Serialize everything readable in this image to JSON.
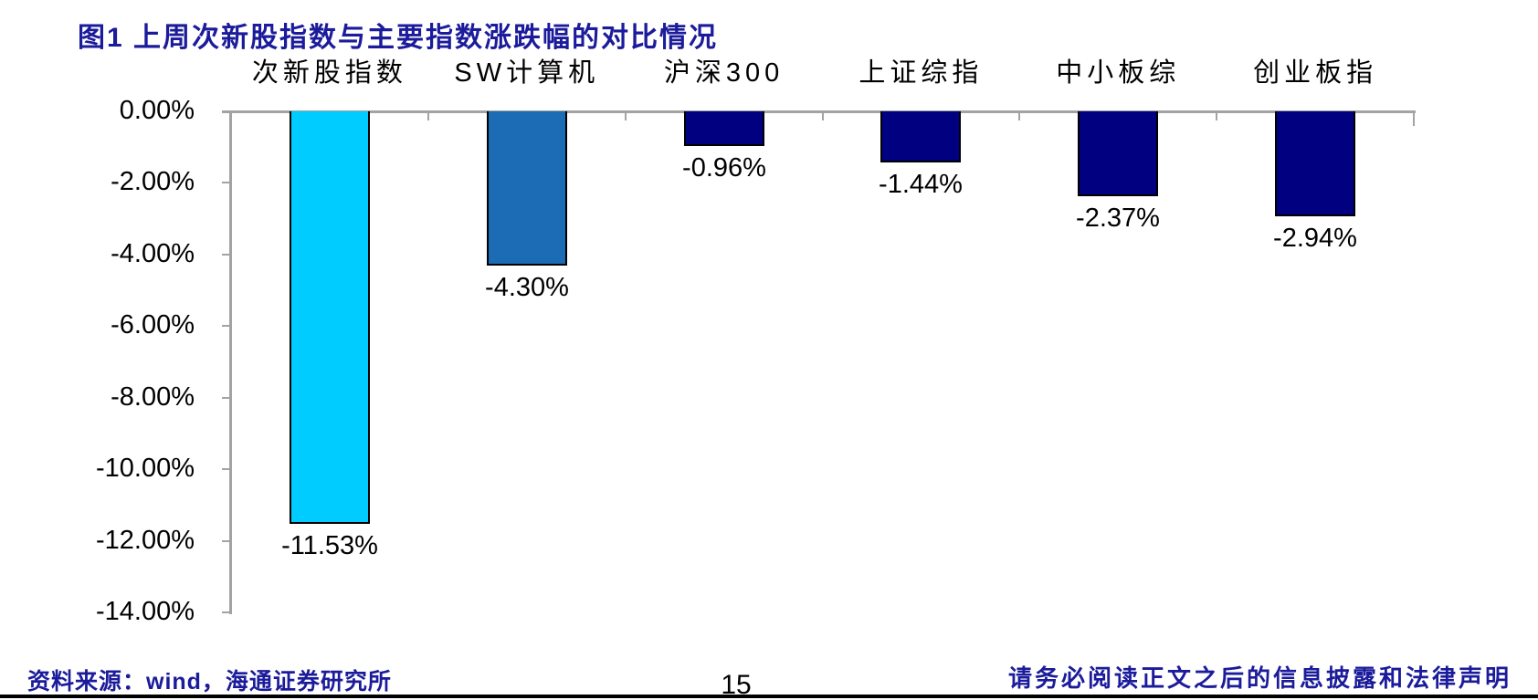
{
  "page": {
    "footer": {
      "source": "资料来源：wind，海通证券研究所",
      "page_number": "15",
      "disclaimer": "请务必阅读正文之后的信息披露和法律声明"
    },
    "colors": {
      "title_blue": "#1b1b9b",
      "axis_gray": "#a3a3a3",
      "bar_border": "#000000",
      "cyan_bar": "#00ccff",
      "medium_blue_bar": "#1b6cb5",
      "navy_bar": "#000080"
    }
  },
  "chart_data": {
    "type": "bar",
    "title": "图1 上周次新股指数与主要指数涨跌幅的对比情况",
    "categories": [
      "次新股指数",
      "SW计算机",
      "沪深300",
      "上证综指",
      "中小板综",
      "创业板指"
    ],
    "values": [
      -11.53,
      -4.3,
      -0.96,
      -1.44,
      -2.37,
      -2.94
    ],
    "value_labels": [
      "-11.53%",
      "-4.30%",
      "-0.96%",
      "-1.44%",
      "-2.37%",
      "-2.94%"
    ],
    "bar_colors": [
      "#00ccff",
      "#1b6cb5",
      "#000080",
      "#000080",
      "#000080",
      "#000080"
    ],
    "xlabel": "",
    "ylabel": "",
    "ylim": [
      -14,
      0
    ],
    "ytick_values": [
      0,
      -2,
      -4,
      -6,
      -8,
      -10,
      -12,
      -14
    ],
    "ytick_labels": [
      "0.00%",
      "-2.00%",
      "-4.00%",
      "-6.00%",
      "-8.00%",
      "-10.00%",
      "-12.00%",
      "-14.00%"
    ],
    "grid": false,
    "legend_position": "none",
    "category_label_position": "top",
    "value_label_position": "below-bar"
  }
}
